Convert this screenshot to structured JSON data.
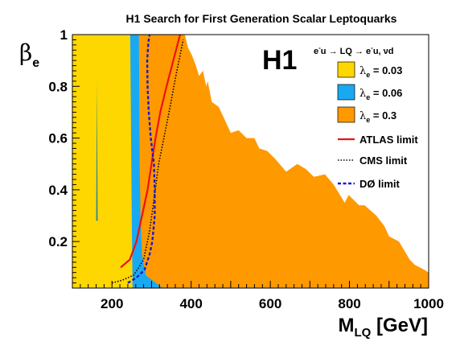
{
  "chart_data": {
    "type": "area",
    "title": "H1 Search for First Generation Scalar Leptoquarks",
    "xlabel": "M",
    "xlabel_sub": "LQ",
    "xlabel_unit": " [GeV]",
    "ylabel": "β",
    "ylabel_sub": "e",
    "xlim": [
      100,
      1000
    ],
    "ylim": [
      0.02,
      1.0
    ],
    "xticks": [
      200,
      400,
      600,
      800,
      1000
    ],
    "yticks": [
      0.2,
      0.4,
      0.6,
      0.8,
      1
    ],
    "grid": false,
    "legend_position": "top-right",
    "logo": "H1",
    "process": {
      "part1": "e",
      "part1_sup": "-",
      "part2": "u → LQ → e",
      "part2_sup": "-",
      "part3": "u, νd"
    },
    "series": [
      {
        "name": "λ",
        "name_sub": "e",
        "name_rest": " = 0.03",
        "kind": "region",
        "color": "#ffd700",
        "boundary": [
          [
            252,
            0.02
          ],
          [
            250,
            0.3
          ],
          [
            246,
            1.0
          ]
        ]
      },
      {
        "name": "λ",
        "name_sub": "e",
        "name_rest": " = 0.06",
        "kind": "region",
        "color": "#19a9f2",
        "boundary": [
          [
            328,
            0.02
          ],
          [
            285,
            0.07
          ],
          [
            276,
            0.15
          ],
          [
            272,
            0.3
          ],
          [
            270,
            0.5
          ],
          [
            268,
            1.0
          ]
        ]
      },
      {
        "name": "λ",
        "name_sub": "e",
        "name_rest": " = 0.3",
        "kind": "region",
        "color": "#ff9900",
        "boundary": [
          [
            1000,
            0.02
          ],
          [
            1000,
            0.08
          ],
          [
            990,
            0.09
          ],
          [
            965,
            0.11
          ],
          [
            952,
            0.13
          ],
          [
            925,
            0.2
          ],
          [
            900,
            0.22
          ],
          [
            888,
            0.26
          ],
          [
            868,
            0.3
          ],
          [
            838,
            0.34
          ],
          [
            824,
            0.34
          ],
          [
            798,
            0.38
          ],
          [
            788,
            0.35
          ],
          [
            760,
            0.42
          ],
          [
            738,
            0.46
          ],
          [
            710,
            0.45
          ],
          [
            690,
            0.48
          ],
          [
            668,
            0.5
          ],
          [
            640,
            0.47
          ],
          [
            612,
            0.52
          ],
          [
            592,
            0.55
          ],
          [
            572,
            0.56
          ],
          [
            560,
            0.6
          ],
          [
            540,
            0.6
          ],
          [
            520,
            0.63
          ],
          [
            500,
            0.62
          ],
          [
            488,
            0.66
          ],
          [
            470,
            0.72
          ],
          [
            452,
            0.74
          ],
          [
            442,
            0.82
          ],
          [
            438,
            0.8
          ],
          [
            430,
            0.86
          ],
          [
            420,
            0.84
          ],
          [
            412,
            0.88
          ],
          [
            402,
            0.92
          ],
          [
            392,
            0.95
          ],
          [
            384,
            1.0
          ]
        ]
      },
      {
        "name": "ATLAS limit",
        "kind": "line",
        "style": "solid",
        "color": "#ee1111",
        "points": [
          [
            222,
            0.1
          ],
          [
            245,
            0.13
          ],
          [
            262,
            0.2
          ],
          [
            276,
            0.3
          ],
          [
            290,
            0.4
          ],
          [
            300,
            0.5
          ],
          [
            310,
            0.6
          ],
          [
            322,
            0.7
          ],
          [
            338,
            0.8
          ],
          [
            355,
            0.9
          ],
          [
            372,
            1.0
          ]
        ]
      },
      {
        "name": "CMS limit",
        "kind": "line",
        "style": "dotted",
        "color": "#000000",
        "points": [
          [
            200,
            0.04
          ],
          [
            225,
            0.05
          ],
          [
            255,
            0.07
          ],
          [
            280,
            0.13
          ],
          [
            295,
            0.24
          ],
          [
            305,
            0.35
          ],
          [
            318,
            0.5
          ],
          [
            335,
            0.63
          ],
          [
            348,
            0.73
          ],
          [
            360,
            0.83
          ],
          [
            372,
            0.92
          ],
          [
            380,
            0.98
          ]
        ]
      },
      {
        "name": "DØ limit",
        "kind": "line",
        "style": "dashed",
        "color": "#1a1acc",
        "points": [
          [
            240,
            0.04
          ],
          [
            262,
            0.06
          ],
          [
            282,
            0.09
          ],
          [
            295,
            0.15
          ],
          [
            302,
            0.2
          ],
          [
            308,
            0.3
          ],
          [
            308,
            0.4
          ],
          [
            306,
            0.5
          ],
          [
            302,
            0.55
          ],
          [
            298,
            0.6
          ],
          [
            293,
            0.7
          ],
          [
            290,
            0.8
          ],
          [
            289,
            0.9
          ],
          [
            292,
            0.97
          ],
          [
            295,
            1.0
          ]
        ]
      }
    ]
  }
}
